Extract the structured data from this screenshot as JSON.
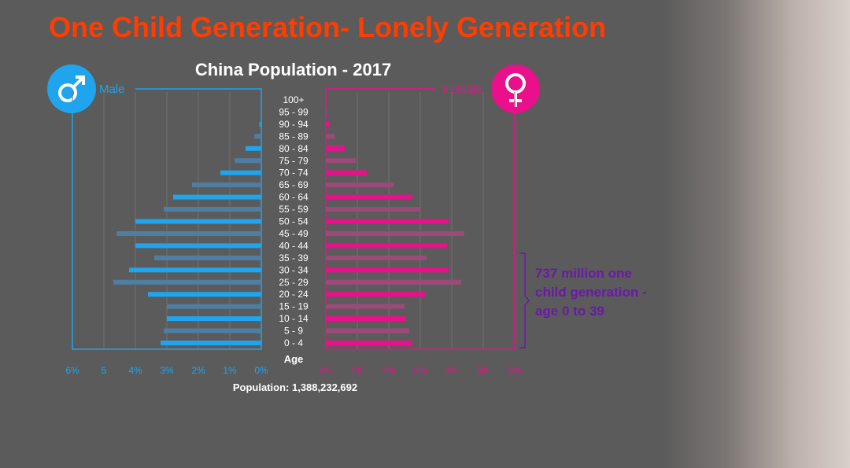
{
  "title": "One Child Generation- Lonely Generation",
  "colors": {
    "title": "#ff3d00",
    "male": "#1ea5ee",
    "male_alt": "#4f7ea3",
    "female": "#ea0f8a",
    "female_alt": "#9c4a79",
    "annotation": "#6a1aa6",
    "background": "#5b5b5b"
  },
  "icons": {
    "male": "male-symbol-icon",
    "female": "female-symbol-icon"
  },
  "labels": {
    "male": "Male",
    "female": "Female",
    "population": "Population: 1,388,232,692",
    "annotation": "737 million one child generation - age 0 to 39"
  },
  "chart_data": {
    "type": "bar",
    "title": "China Population - 2017",
    "categories": [
      "0 - 4",
      "5 - 9",
      "10 - 14",
      "15 - 19",
      "20 - 24",
      "25 - 29",
      "30 - 34",
      "35 - 39",
      "40 - 44",
      "45 - 49",
      "50 - 54",
      "55 - 59",
      "60 - 64",
      "65 - 69",
      "70 - 74",
      "75 - 79",
      "80 - 84",
      "85 - 89",
      "90 - 94",
      "95 - 99",
      "100+"
    ],
    "ylabel": "Age",
    "series": [
      {
        "name": "Male",
        "values": [
          3.2,
          3.1,
          3.0,
          3.0,
          3.6,
          4.7,
          4.2,
          3.4,
          4.0,
          4.6,
          4.0,
          3.1,
          2.8,
          2.2,
          1.3,
          0.85,
          0.5,
          0.22,
          0.06,
          0.01,
          0.0
        ]
      },
      {
        "name": "Female",
        "values": [
          2.75,
          2.65,
          2.55,
          2.5,
          3.15,
          4.3,
          3.9,
          3.2,
          3.85,
          4.4,
          3.9,
          3.0,
          2.75,
          2.15,
          1.3,
          0.95,
          0.6,
          0.28,
          0.1,
          0.02,
          0.0
        ]
      }
    ],
    "male_ticks": [
      "6%",
      "5",
      "4%",
      "3%",
      "2%",
      "1%",
      "0%"
    ],
    "female_ticks": [
      "0%",
      "1%",
      "2%",
      "3%",
      "4%",
      "5%",
      "6%"
    ],
    "xlim": [
      0,
      6
    ],
    "grid": true,
    "annotations": [
      "737 million one child generation - age 0 to 39"
    ]
  }
}
